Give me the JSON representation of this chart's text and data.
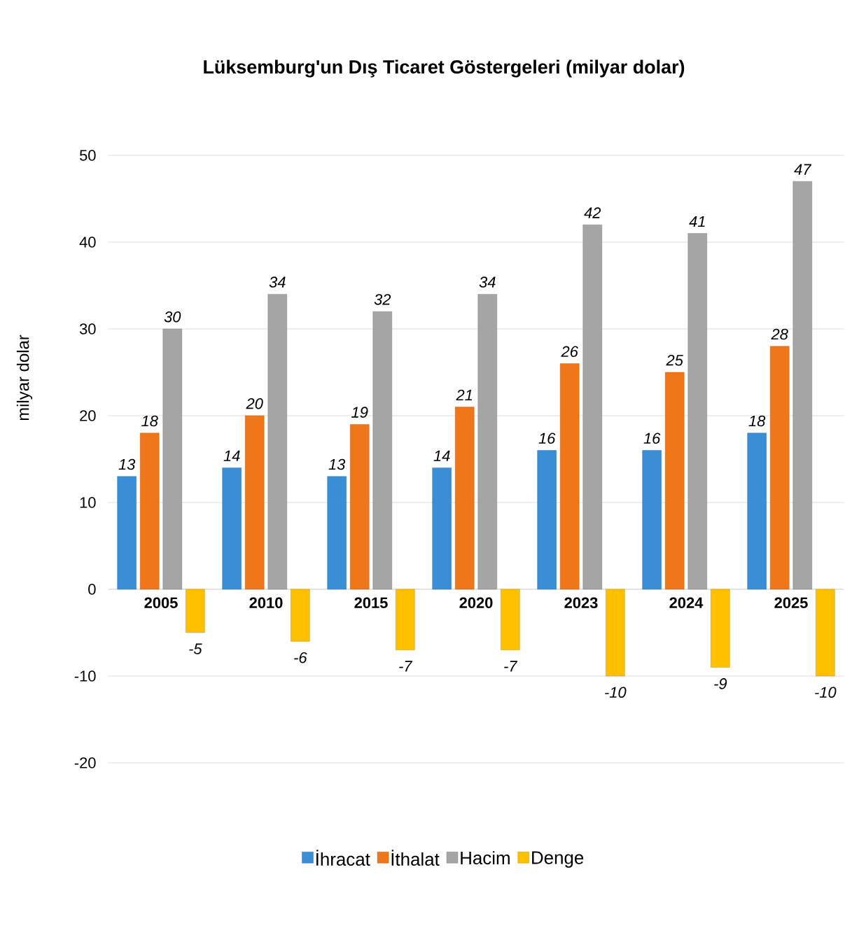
{
  "chart_data": {
    "type": "bar",
    "title": "Lüksemburg'un Dış Ticaret Göstergeleri (milyar dolar)",
    "ylabel": "milyar dolar",
    "categories": [
      "2005",
      "2010",
      "2015",
      "2020",
      "2023",
      "2024",
      "2025"
    ],
    "series": [
      {
        "name": "İhracat",
        "color": "#3a8ed6",
        "values": [
          13,
          14,
          13,
          14,
          16,
          16,
          18
        ]
      },
      {
        "name": "İthalat",
        "color": "#f0761a",
        "values": [
          18,
          20,
          19,
          21,
          26,
          25,
          28
        ]
      },
      {
        "name": "Hacim",
        "color": "#a5a5a5",
        "values": [
          30,
          34,
          32,
          34,
          42,
          41,
          47
        ]
      },
      {
        "name": "Denge",
        "color": "#ffc000",
        "values": [
          -5,
          -6,
          -7,
          -7,
          -10,
          -9,
          -10
        ]
      }
    ],
    "ylim": [
      -20,
      50
    ],
    "yticks": [
      -20,
      -10,
      0,
      10,
      20,
      30,
      40,
      50
    ],
    "grid": "y",
    "legend": "bottom",
    "data_labels": true
  }
}
